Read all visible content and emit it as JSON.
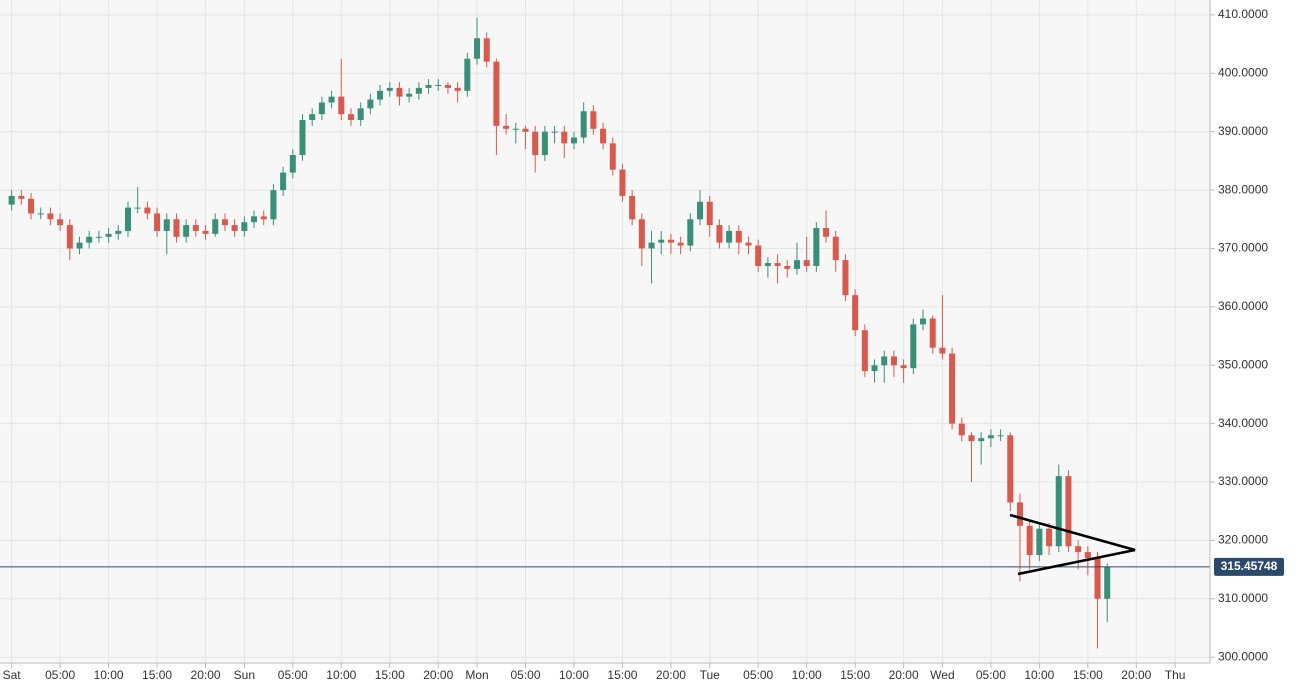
{
  "chart_data": {
    "type": "candlestick",
    "x": [
      0,
      1,
      2,
      3,
      4,
      5,
      6,
      7,
      8,
      9,
      10,
      11,
      12,
      13,
      14,
      15,
      16,
      17,
      18,
      19,
      20,
      21,
      22,
      23,
      24,
      25,
      26,
      27,
      28,
      29,
      30,
      31,
      32,
      33,
      34,
      35,
      36,
      37,
      38,
      39,
      40,
      41,
      42,
      43,
      44,
      45,
      46,
      47,
      48,
      49,
      50,
      51,
      52,
      53,
      54,
      55,
      56,
      57,
      58,
      59,
      60,
      61,
      62,
      63,
      64,
      65,
      66,
      67,
      68,
      69,
      70,
      71,
      72,
      73,
      74,
      75,
      76,
      77,
      78,
      79,
      80,
      81,
      82,
      83,
      84,
      85,
      86,
      87,
      88,
      89,
      90,
      91,
      92,
      93,
      94,
      95,
      96,
      97,
      98,
      99,
      100,
      101,
      102,
      103,
      104,
      105,
      106,
      107,
      108,
      109,
      110,
      111,
      112,
      113
    ],
    "open": [
      377.5,
      379,
      378.5,
      376,
      376,
      375,
      374,
      370,
      371,
      372,
      372,
      372.5,
      373,
      377,
      377,
      376,
      373,
      375,
      372,
      374,
      373,
      372.5,
      375,
      374,
      373,
      374.5,
      375.5,
      375,
      380,
      383,
      386,
      392,
      393,
      395,
      396,
      393,
      392,
      394,
      395.5,
      397,
      397.5,
      396,
      396.5,
      397.5,
      398,
      398,
      397.5,
      397,
      402.5,
      406,
      402,
      391,
      390.5,
      390.5,
      390,
      386,
      390,
      390,
      388,
      389,
      393.5,
      390.5,
      388,
      383.5,
      379,
      375,
      370,
      371,
      371.5,
      371,
      370.5,
      375,
      378,
      374,
      371,
      373,
      371,
      370.5,
      367,
      367.5,
      367,
      366.5,
      368,
      367,
      373.5,
      372,
      368,
      362,
      356,
      349,
      350,
      351.5,
      350,
      349.5,
      357,
      358,
      353,
      352,
      340,
      338,
      337,
      337.5,
      338,
      338,
      326.5,
      322.5,
      317.5,
      322,
      319,
      331,
      319,
      318,
      317,
      310
    ],
    "high": [
      380,
      380,
      379.5,
      377,
      377,
      376,
      375,
      372,
      373,
      373,
      373.5,
      374,
      378,
      380.5,
      378,
      377,
      376,
      376,
      375,
      375,
      374,
      376,
      376,
      375,
      375.5,
      376.5,
      376.5,
      381,
      384,
      387,
      393,
      394,
      396,
      397,
      402.5,
      394,
      395,
      396.5,
      398,
      398.5,
      398.5,
      397.5,
      398.5,
      399,
      399,
      398.5,
      398.5,
      403.5,
      409.5,
      407,
      402.5,
      393,
      391.5,
      391,
      391,
      391,
      391,
      391,
      390,
      395,
      394.5,
      391.5,
      389,
      384.5,
      380,
      376,
      373,
      373,
      372.5,
      372,
      376,
      380,
      379,
      375,
      374,
      374,
      372,
      371.5,
      368.5,
      369,
      368,
      371,
      372,
      374.5,
      376.5,
      373,
      369,
      363,
      357,
      351,
      352.5,
      352.5,
      351,
      358,
      359.5,
      358.5,
      362,
      353,
      341,
      338.5,
      338.5,
      339,
      339,
      338.5,
      328,
      323.5,
      323,
      323,
      333,
      332,
      320,
      319,
      318,
      316
    ],
    "low": [
      376.5,
      377.5,
      375,
      375,
      374,
      373,
      368,
      369,
      370,
      371,
      371,
      371.5,
      372,
      376,
      375,
      372,
      369,
      371,
      371,
      372,
      371.5,
      372,
      373,
      372,
      372,
      373.5,
      374,
      374,
      379,
      382,
      385,
      391,
      392,
      394,
      392,
      391,
      391,
      393,
      394.5,
      396,
      394.5,
      395,
      395.5,
      396.5,
      397,
      396.5,
      395,
      396,
      401.5,
      401,
      386,
      389.5,
      388,
      387,
      383,
      385,
      388,
      385.5,
      387,
      388,
      389.5,
      387,
      382.5,
      378,
      374,
      367,
      364,
      369,
      369,
      369,
      369.5,
      374,
      372,
      370,
      370,
      369,
      369,
      366,
      365,
      364,
      365,
      365.5,
      366,
      366,
      371,
      366,
      361,
      355,
      348,
      347,
      347,
      348,
      347,
      348.5,
      356,
      352,
      351,
      339,
      337,
      330,
      333,
      336,
      337,
      325,
      313,
      315,
      316.5,
      317.5,
      318,
      318,
      315,
      314,
      301.5,
      306
    ],
    "close": [
      379,
      378.5,
      376,
      376,
      375,
      374,
      370,
      371,
      372,
      372,
      372.5,
      373,
      377,
      377,
      376,
      373,
      375,
      372,
      374,
      373,
      372.5,
      375,
      374,
      373,
      374.5,
      375.5,
      375,
      380,
      383,
      386,
      392,
      393,
      395,
      396,
      393,
      392,
      394,
      395.5,
      397,
      397.5,
      396,
      396.5,
      397.5,
      398,
      398,
      397.5,
      397,
      402.5,
      406,
      402,
      391,
      390.5,
      390.5,
      390,
      386,
      390,
      390,
      388,
      389,
      393.5,
      390.5,
      388,
      383.5,
      379,
      375,
      370,
      371,
      371.5,
      371,
      370.5,
      375,
      378,
      374,
      371,
      373,
      371,
      370.5,
      367,
      367.5,
      367,
      366.5,
      368,
      367,
      373.5,
      372,
      368,
      362,
      356,
      349,
      350,
      351.5,
      350,
      349.5,
      357,
      358,
      353,
      352,
      340,
      338,
      337,
      337.5,
      338,
      338,
      326.5,
      322.5,
      317.5,
      322,
      319,
      331,
      319,
      318,
      317,
      310,
      315.5
    ],
    "up_color": "#3a8f78",
    "down_color": "#d9594c",
    "last_price": 315.45748,
    "last_price_color": "#2b4a6b",
    "xlim": [
      -1.2,
      123.6
    ],
    "xticks": [
      {
        "value": 0,
        "label": "Sat"
      },
      {
        "value": 5,
        "label": "05:00"
      },
      {
        "value": 10,
        "label": "10:00"
      },
      {
        "value": 15,
        "label": "15:00"
      },
      {
        "value": 20,
        "label": "20:00"
      },
      {
        "value": 24,
        "label": "Sun"
      },
      {
        "value": 29,
        "label": "05:00"
      },
      {
        "value": 34,
        "label": "10:00"
      },
      {
        "value": 39,
        "label": "15:00"
      },
      {
        "value": 44,
        "label": "20:00"
      },
      {
        "value": 48,
        "label": "Mon"
      },
      {
        "value": 53,
        "label": "05:00"
      },
      {
        "value": 58,
        "label": "10:00"
      },
      {
        "value": 63,
        "label": "15:00"
      },
      {
        "value": 68,
        "label": "20:00"
      },
      {
        "value": 72,
        "label": "Tue"
      },
      {
        "value": 77,
        "label": "05:00"
      },
      {
        "value": 82,
        "label": "10:00"
      },
      {
        "value": 87,
        "label": "15:00"
      },
      {
        "value": 92,
        "label": "20:00"
      },
      {
        "value": 96,
        "label": "Wed"
      },
      {
        "value": 101,
        "label": "05:00"
      },
      {
        "value": 106,
        "label": "10:00"
      },
      {
        "value": 111,
        "label": "15:00"
      },
      {
        "value": 116,
        "label": "20:00"
      },
      {
        "value": 120,
        "label": "Thu"
      }
    ],
    "ylim": [
      299,
      411.7
    ],
    "yticks": [
      {
        "value": 300,
        "label": "300.0000"
      },
      {
        "value": 310,
        "label": "310.0000"
      },
      {
        "value": 320,
        "label": "320.0000"
      },
      {
        "value": 330,
        "label": "330.0000"
      },
      {
        "value": 340,
        "label": "340.0000"
      },
      {
        "value": 350,
        "label": "350.0000"
      },
      {
        "value": 360,
        "label": "360.0000"
      },
      {
        "value": 370,
        "label": "370.0000"
      },
      {
        "value": 380,
        "label": "380.0000"
      },
      {
        "value": 390,
        "label": "390.0000"
      },
      {
        "value": 400,
        "label": "400.0000"
      },
      {
        "value": 410,
        "label": "410.0000"
      }
    ],
    "grid": true
  }
}
